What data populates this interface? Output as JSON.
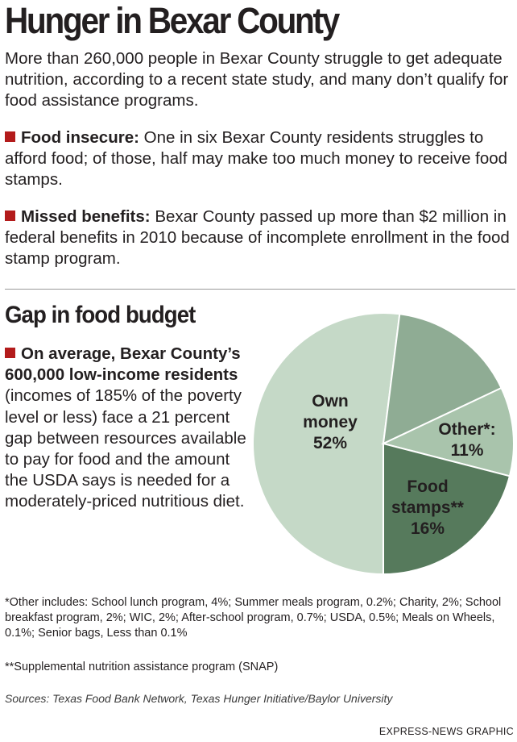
{
  "header": {
    "title": "Hunger in Bexar County",
    "intro": "More than 260,000 people in Bexar County struggle to get adequate nutrition, according to a recent state study, and many don’t qualify for food assistance programs."
  },
  "bullets": [
    {
      "lead": "Food insecure:",
      "text": "One in six Bexar County residents struggles to afford food; of those, half may make too much money to receive food stamps."
    },
    {
      "lead": "Missed benefits:",
      "text": "Bexar County passed up more than $2 million in federal benefits in 2010 because of incomplete enrollment in the food stamp program."
    }
  ],
  "gap": {
    "heading": "Gap in food budget",
    "lead": "On average, Bexar County’s 600,000 low-income residents",
    "text": "(incomes of 185% of the poverty level or less) face a 21 percent gap between resources available to pay for food and the amount the USDA says is needed for a moderately-priced nutritious diet."
  },
  "chart_data": {
    "type": "pie",
    "title": "Gap in food budget",
    "slices": [
      {
        "label_lines": [
          "Own",
          "money",
          "52%"
        ],
        "value": 52,
        "color": "#c5d9c7"
      },
      {
        "label_lines": [
          "Food",
          "stamps**",
          "16%"
        ],
        "value": 16,
        "color": "#8fac94"
      },
      {
        "label_lines": [
          "Other*:",
          "11%"
        ],
        "value": 11,
        "color": "#a9c4ac"
      },
      {
        "label_lines": [],
        "value": 21,
        "color": "#567a5c"
      }
    ]
  },
  "notes": {
    "other": "*Other includes: School lunch program, 4%; Summer meals program, 0.2%; Charity, 2%; School breakfast program, 2%; WIC, 2%; After-school program, 0.7%; USDA, 0.5%; Meals on Wheels, 0.1%; Senior bags, Less than 0.1%",
    "snap": "**Supplemental nutrition assistance program (SNAP)"
  },
  "sources": "Sources: Texas Food Bank Network, Texas Hunger Initiative/Baylor University",
  "credit": "EXPRESS-NEWS GRAPHIC"
}
